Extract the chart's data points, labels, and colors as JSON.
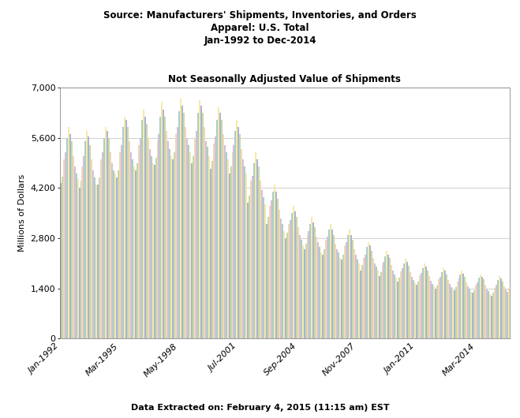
{
  "title_line1": "Source: Manufacturers' Shipments, Inventories, and Orders",
  "title_line2": "Apparel: U.S. Total",
  "title_line3": "Jan-1992 to Dec-2014",
  "subtitle": "Not Seasonally Adjusted Value of Shipments",
  "footer": "Data Extracted on: February 4, 2015 (11:15 am) EST",
  "ylabel": "Millions of Dollars",
  "ylim": [
    0,
    7000
  ],
  "yticks": [
    0,
    1400,
    2800,
    4200,
    5600,
    7000
  ],
  "ytick_labels": [
    "0",
    "1,400",
    "2,800",
    "4,200",
    "5,600",
    "7,000"
  ],
  "xtick_labels": [
    "Jan-1992",
    "Mar-1995",
    "May-1998",
    "Jul-2001",
    "Sep-2004",
    "Nov-2007",
    "Jan-2011",
    "Mar-2014"
  ],
  "bar_colors": [
    "#aab4d4",
    "#c8d8a8",
    "#f0d8b8",
    "#d4c0d8",
    "#a8d0c8",
    "#f8e8a8"
  ],
  "background_color": "#ffffff",
  "plot_bg_color": "#ffffff",
  "grid_color": "#d0d0d0",
  "n_colors": 6,
  "start_year": 1992,
  "start_month": 1,
  "end_year": 2014,
  "end_month": 12,
  "shipments_data": [
    4350,
    4530,
    5000,
    5200,
    5600,
    5900,
    5700,
    5500,
    5100,
    4800,
    4600,
    4450,
    4200,
    4400,
    4800,
    5100,
    5500,
    5800,
    5650,
    5400,
    5000,
    4700,
    4500,
    4300,
    4300,
    4500,
    5000,
    5200,
    5600,
    5900,
    5800,
    5600,
    5200,
    4900,
    4700,
    4600,
    4500,
    4700,
    5200,
    5400,
    5900,
    6200,
    6100,
    5900,
    5500,
    5200,
    5000,
    4800,
    4700,
    4900,
    5400,
    5600,
    6100,
    6400,
    6200,
    6000,
    5600,
    5300,
    5100,
    4900,
    4850,
    5050,
    5500,
    5700,
    6200,
    6600,
    6400,
    6200,
    5800,
    5500,
    5300,
    5100,
    5000,
    5200,
    5700,
    5900,
    6350,
    6700,
    6500,
    6300,
    5900,
    5600,
    5400,
    5200,
    4900,
    5100,
    5600,
    5800,
    6300,
    6650,
    6500,
    6300,
    5900,
    5500,
    5350,
    5100,
    4750,
    4950,
    5450,
    5650,
    6100,
    6450,
    6300,
    6100,
    5700,
    5400,
    5200,
    5000,
    4600,
    4800,
    5200,
    5400,
    5800,
    6100,
    5900,
    5700,
    5300,
    5000,
    4800,
    4600,
    3800,
    4000,
    4400,
    4550,
    4900,
    5200,
    5000,
    4800,
    4400,
    4150,
    3950,
    3750,
    3200,
    3400,
    3700,
    3850,
    4100,
    4300,
    4100,
    3900,
    3600,
    3350,
    3200,
    3000,
    2800,
    2950,
    3200,
    3300,
    3500,
    3700,
    3550,
    3400,
    3100,
    2900,
    2750,
    2600,
    2500,
    2650,
    2900,
    3000,
    3200,
    3400,
    3250,
    3100,
    2850,
    2700,
    2550,
    2400,
    2350,
    2500,
    2750,
    2850,
    3050,
    3200,
    3050,
    2900,
    2650,
    2500,
    2400,
    2250,
    2200,
    2350,
    2600,
    2700,
    2900,
    3050,
    2900,
    2750,
    2500,
    2350,
    2200,
    2100,
    1900,
    2050,
    2250,
    2350,
    2550,
    2700,
    2600,
    2450,
    2250,
    2100,
    2000,
    1900,
    1750,
    1850,
    2050,
    2150,
    2300,
    2450,
    2350,
    2250,
    2050,
    1900,
    1800,
    1700,
    1600,
    1700,
    1880,
    1970,
    2100,
    2230,
    2140,
    2040,
    1860,
    1730,
    1640,
    1550,
    1500,
    1590,
    1760,
    1840,
    1970,
    2090,
    2000,
    1910,
    1740,
    1620,
    1530,
    1450,
    1400,
    1490,
    1650,
    1730,
    1860,
    1970,
    1890,
    1800,
    1640,
    1520,
    1440,
    1360,
    1350,
    1440,
    1590,
    1670,
    1790,
    1900,
    1820,
    1730,
    1580,
    1460,
    1390,
    1310,
    1280,
    1360,
    1510,
    1580,
    1700,
    1800,
    1730,
    1650,
    1500,
    1400,
    1320,
    1250,
    1200,
    1290,
    1420,
    1510,
    1630,
    1750,
    1690,
    1600,
    1470,
    1370,
    1300,
    1380
  ]
}
